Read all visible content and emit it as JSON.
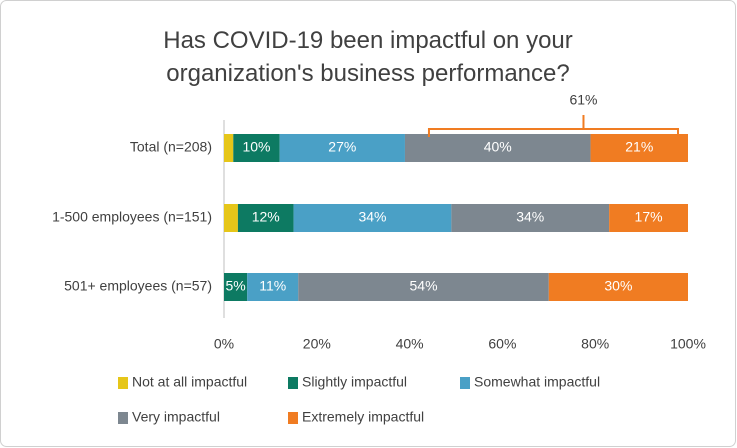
{
  "chart_data": {
    "type": "stacked-bar-horizontal",
    "title": "Has COVID-19 been impactful on your organization's business performance?",
    "categories": [
      "Total (n=208)",
      "1-500 employees (n=151)",
      "501+ employees (n=57)"
    ],
    "series": [
      {
        "name": "Not at all impactful",
        "color": "#e6c619",
        "values": [
          2,
          3,
          0
        ]
      },
      {
        "name": "Slightly impactful",
        "color": "#0d7a62",
        "values": [
          10,
          12,
          5
        ],
        "value_labels": [
          "10%",
          "12%",
          "5%"
        ]
      },
      {
        "name": "Somewhat impactful",
        "color": "#4aa0c6",
        "values": [
          27,
          34,
          11
        ],
        "value_labels": [
          "27%",
          "34%",
          "11%"
        ]
      },
      {
        "name": "Very impactful",
        "color": "#7d8790",
        "values": [
          40,
          34,
          54
        ],
        "value_labels": [
          "40%",
          "34%",
          "54%"
        ]
      },
      {
        "name": "Extremely impactful",
        "color": "#f07c22",
        "values": [
          21,
          17,
          30
        ],
        "value_labels": [
          "21%",
          "17%",
          "30%"
        ]
      }
    ],
    "xlim": [
      0,
      100
    ],
    "xticks": [
      {
        "value": 0,
        "label": "0%"
      },
      {
        "value": 20,
        "label": "20%"
      },
      {
        "value": 40,
        "label": "40%"
      },
      {
        "value": 60,
        "label": "60%"
      },
      {
        "value": 80,
        "label": "80%"
      },
      {
        "value": 100,
        "label": "100%"
      }
    ],
    "annotation": "61%",
    "legend": "bottom"
  }
}
